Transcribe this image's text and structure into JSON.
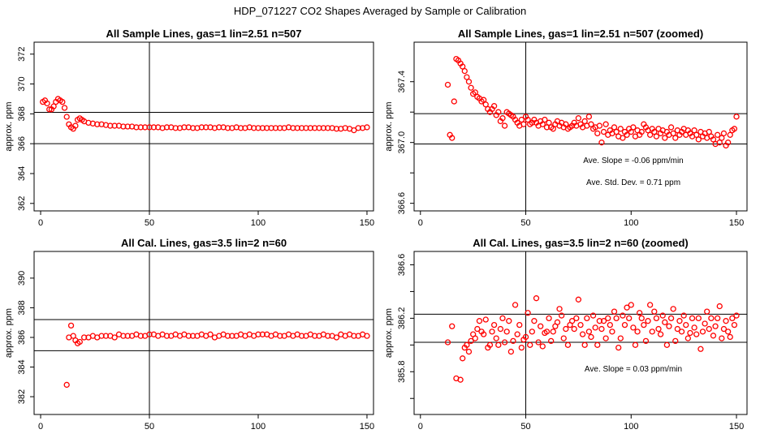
{
  "figure": {
    "title": "HDP_071227  CO2 Shapes Averaged by Sample or Calibration"
  },
  "chart_data": [
    {
      "type": "scatter",
      "title": "All Sample Lines, gas=1 lin=2.51 n=507",
      "xlabel": "",
      "ylabel": "approx. ppm",
      "xlim": [
        -3,
        153
      ],
      "ylim": [
        361.5,
        372.8
      ],
      "xticks": [
        0,
        50,
        100,
        150
      ],
      "yticks": [
        362,
        364,
        366,
        368,
        370,
        372
      ],
      "hlines": [
        366.0,
        368.1
      ],
      "vlines": [
        50
      ],
      "annotations": [],
      "series": [
        {
          "color": "#ff0000",
          "marker": "open-circle",
          "x": [
            1,
            2,
            3,
            4,
            5,
            6,
            7,
            8,
            9,
            10,
            11,
            12,
            13,
            14,
            15,
            16,
            17,
            18,
            19,
            20,
            22,
            24,
            26,
            28,
            30,
            32,
            34,
            36,
            38,
            40,
            42,
            44,
            46,
            48,
            50,
            52,
            54,
            56,
            58,
            60,
            62,
            64,
            66,
            68,
            70,
            72,
            74,
            76,
            78,
            80,
            82,
            84,
            86,
            88,
            90,
            92,
            94,
            96,
            98,
            100,
            102,
            104,
            106,
            108,
            110,
            112,
            114,
            116,
            118,
            120,
            122,
            124,
            126,
            128,
            130,
            132,
            134,
            136,
            138,
            140,
            142,
            144,
            146,
            148,
            150
          ],
          "y": [
            368.8,
            368.9,
            368.7,
            368.3,
            368.3,
            368.5,
            368.8,
            369.0,
            368.9,
            368.8,
            368.4,
            367.8,
            367.3,
            367.1,
            367.0,
            367.2,
            367.6,
            367.7,
            367.6,
            367.5,
            367.4,
            367.35,
            367.3,
            367.3,
            367.25,
            367.2,
            367.2,
            367.2,
            367.15,
            367.15,
            367.15,
            367.1,
            367.1,
            367.1,
            367.1,
            367.1,
            367.1,
            367.05,
            367.1,
            367.1,
            367.05,
            367.05,
            367.1,
            367.1,
            367.05,
            367.05,
            367.1,
            367.1,
            367.1,
            367.05,
            367.1,
            367.1,
            367.05,
            367.05,
            367.1,
            367.05,
            367.05,
            367.1,
            367.05,
            367.05,
            367.05,
            367.05,
            367.05,
            367.05,
            367.05,
            367.05,
            367.1,
            367.05,
            367.05,
            367.05,
            367.05,
            367.05,
            367.05,
            367.05,
            367.05,
            367.05,
            367.05,
            367.0,
            367.0,
            367.05,
            367.0,
            366.9,
            367.05,
            367.05,
            367.1
          ]
        }
      ]
    },
    {
      "type": "scatter",
      "title": "All Sample Lines, gas=1 lin=2.51 n=507 (zoomed)",
      "xlabel": "",
      "ylabel": "approx. ppm",
      "xlim": [
        -3,
        155
      ],
      "ylim": [
        366.55,
        367.66
      ],
      "xticks": [
        0,
        50,
        100,
        150
      ],
      "yticks": [
        366.6,
        366.8,
        367.0,
        367.2,
        367.4
      ],
      "ytick_labels": [
        "366.6",
        "",
        "367.0",
        "",
        "367.4"
      ],
      "hlines": [
        366.99,
        367.19
      ],
      "vlines": [
        50
      ],
      "annotations": [
        "Ave. Slope =  -0.06  ppm/min",
        "Ave. Std. Dev. =  0.71  ppm"
      ],
      "series": [
        {
          "color": "#ff0000",
          "marker": "open-circle",
          "x": [
            13,
            14,
            15,
            16,
            17,
            18,
            19,
            20,
            21,
            22,
            23,
            24,
            25,
            26,
            27,
            28,
            29,
            30,
            31,
            32,
            33,
            34,
            35,
            36,
            37,
            38,
            39,
            40,
            41,
            42,
            43,
            44,
            45,
            46,
            47,
            48,
            49,
            50,
            51,
            52,
            53,
            54,
            55,
            56,
            57,
            58,
            59,
            60,
            61,
            62,
            63,
            64,
            65,
            66,
            67,
            68,
            69,
            70,
            71,
            72,
            73,
            74,
            75,
            76,
            77,
            78,
            79,
            80,
            81,
            82,
            83,
            84,
            85,
            86,
            87,
            88,
            89,
            90,
            91,
            92,
            93,
            94,
            95,
            96,
            97,
            98,
            99,
            100,
            101,
            102,
            103,
            104,
            105,
            106,
            107,
            108,
            109,
            110,
            111,
            112,
            113,
            114,
            115,
            116,
            117,
            118,
            119,
            120,
            121,
            122,
            123,
            124,
            125,
            126,
            127,
            128,
            129,
            130,
            131,
            132,
            133,
            134,
            135,
            136,
            137,
            138,
            139,
            140,
            141,
            142,
            143,
            144,
            145,
            146,
            147,
            148,
            149,
            150
          ],
          "y": [
            367.38,
            367.05,
            367.03,
            367.27,
            367.55,
            367.54,
            367.52,
            367.5,
            367.47,
            367.43,
            367.4,
            367.36,
            367.32,
            367.33,
            367.3,
            367.29,
            367.27,
            367.28,
            367.25,
            367.22,
            367.2,
            367.22,
            367.24,
            367.18,
            367.2,
            367.14,
            367.16,
            367.11,
            367.2,
            367.19,
            367.18,
            367.17,
            367.15,
            367.13,
            367.11,
            367.15,
            367.12,
            367.17,
            367.15,
            367.12,
            367.13,
            367.15,
            367.13,
            367.11,
            367.14,
            367.12,
            367.15,
            367.1,
            367.13,
            367.1,
            367.09,
            367.12,
            367.14,
            367.11,
            367.13,
            367.1,
            367.12,
            367.09,
            367.1,
            367.11,
            367.13,
            367.11,
            367.16,
            367.12,
            367.1,
            367.14,
            367.11,
            367.17,
            367.12,
            367.09,
            367.1,
            367.06,
            367.11,
            367.0,
            367.07,
            367.12,
            367.05,
            367.08,
            367.06,
            367.1,
            367.07,
            367.04,
            367.09,
            367.03,
            367.07,
            367.05,
            367.09,
            367.07,
            367.1,
            367.04,
            367.08,
            367.05,
            367.07,
            367.12,
            367.1,
            367.08,
            367.05,
            367.09,
            367.07,
            367.04,
            367.09,
            367.06,
            367.08,
            367.03,
            367.07,
            367.05,
            367.1,
            367.06,
            367.03,
            367.08,
            367.05,
            367.07,
            367.09,
            367.05,
            367.08,
            367.06,
            367.04,
            367.08,
            367.05,
            367.02,
            367.07,
            367.04,
            367.06,
            367.03,
            367.07,
            367.04,
            367.02,
            366.99,
            367.05,
            367.0,
            367.03,
            367.06,
            366.98,
            367.0,
            367.05,
            367.08,
            367.09,
            367.17
          ]
        }
      ]
    },
    {
      "type": "scatter",
      "title": "All Cal. Lines, gas=3.5 lin=2 n=60",
      "xlabel": "",
      "ylabel": "approx. ppm",
      "xlim": [
        -3,
        153
      ],
      "ylim": [
        380.8,
        391.8
      ],
      "xticks": [
        0,
        50,
        100,
        150
      ],
      "yticks": [
        382,
        384,
        386,
        388,
        390
      ],
      "hlines": [
        385.1,
        387.2
      ],
      "vlines": [
        50
      ],
      "annotations": [],
      "series": [
        {
          "color": "#ff0000",
          "marker": "open-circle",
          "x": [
            12,
            13,
            14,
            15,
            16,
            17,
            18,
            20,
            22,
            24,
            26,
            28,
            30,
            32,
            34,
            36,
            38,
            40,
            42,
            44,
            46,
            48,
            50,
            52,
            54,
            56,
            58,
            60,
            62,
            64,
            66,
            68,
            70,
            72,
            74,
            76,
            78,
            80,
            82,
            84,
            86,
            88,
            90,
            92,
            94,
            96,
            98,
            100,
            102,
            104,
            106,
            108,
            110,
            112,
            114,
            116,
            118,
            120,
            122,
            124,
            126,
            128,
            130,
            132,
            134,
            136,
            138,
            140,
            142,
            144,
            146,
            148,
            150
          ],
          "y": [
            382.8,
            386.0,
            386.8,
            386.1,
            385.8,
            385.6,
            385.7,
            386.0,
            386.0,
            386.1,
            386.0,
            386.1,
            386.1,
            386.1,
            386.0,
            386.2,
            386.1,
            386.1,
            386.1,
            386.2,
            386.1,
            386.1,
            386.2,
            386.2,
            386.1,
            386.2,
            386.1,
            386.1,
            386.2,
            386.1,
            386.2,
            386.1,
            386.1,
            386.1,
            386.2,
            386.1,
            386.2,
            386.0,
            386.1,
            386.2,
            386.1,
            386.1,
            386.1,
            386.2,
            386.1,
            386.2,
            386.1,
            386.2,
            386.2,
            386.2,
            386.1,
            386.2,
            386.1,
            386.1,
            386.2,
            386.1,
            386.2,
            386.1,
            386.1,
            386.2,
            386.1,
            386.1,
            386.2,
            386.1,
            386.1,
            386.0,
            386.2,
            386.1,
            386.2,
            386.1,
            386.1,
            386.2,
            386.1
          ]
        }
      ]
    },
    {
      "type": "scatter",
      "title": "All Cal. Lines, gas=3.5 lin=2 n=60 (zoomed)",
      "xlabel": "",
      "ylabel": "approx. ppm",
      "xlim": [
        -3,
        155
      ],
      "ylim": [
        385.48,
        386.7
      ],
      "xticks": [
        0,
        50,
        100,
        150
      ],
      "yticks": [
        385.6,
        385.8,
        386.0,
        386.2,
        386.4,
        386.6
      ],
      "ytick_labels": [
        "",
        "385.8",
        "",
        "386.2",
        "",
        "386.6"
      ],
      "hlines": [
        386.02,
        386.23
      ],
      "vlines": [
        50
      ],
      "annotations": [
        "Ave. Slope =  0.03  ppm/min"
      ],
      "series": [
        {
          "color": "#ff0000",
          "marker": "open-circle",
          "x": [
            13,
            15,
            17,
            19,
            20,
            21,
            22,
            23,
            24,
            25,
            26,
            27,
            28,
            29,
            30,
            31,
            32,
            33,
            34,
            35,
            36,
            37,
            38,
            39,
            40,
            41,
            42,
            43,
            44,
            45,
            46,
            47,
            48,
            49,
            50,
            51,
            52,
            53,
            54,
            55,
            56,
            57,
            58,
            59,
            60,
            61,
            62,
            63,
            64,
            65,
            66,
            67,
            68,
            69,
            70,
            71,
            72,
            73,
            74,
            75,
            76,
            77,
            78,
            79,
            80,
            81,
            82,
            83,
            84,
            85,
            86,
            87,
            88,
            89,
            90,
            91,
            92,
            93,
            94,
            95,
            96,
            97,
            98,
            99,
            100,
            101,
            102,
            103,
            104,
            105,
            106,
            107,
            108,
            109,
            110,
            111,
            112,
            113,
            114,
            115,
            116,
            117,
            118,
            119,
            120,
            121,
            122,
            123,
            124,
            125,
            126,
            127,
            128,
            129,
            130,
            131,
            132,
            133,
            134,
            135,
            136,
            137,
            138,
            139,
            140,
            141,
            142,
            143,
            144,
            145,
            146,
            147,
            148,
            149,
            150
          ],
          "y": [
            386.02,
            386.14,
            385.75,
            385.74,
            385.9,
            385.98,
            386.0,
            385.95,
            386.03,
            386.08,
            386.05,
            386.12,
            386.18,
            386.1,
            386.08,
            386.19,
            385.98,
            386.0,
            386.1,
            386.15,
            386.05,
            386.0,
            386.12,
            386.2,
            386.02,
            386.1,
            386.18,
            385.95,
            386.03,
            386.3,
            386.08,
            386.15,
            385.98,
            386.04,
            386.06,
            386.24,
            386.0,
            386.1,
            386.18,
            386.35,
            386.02,
            386.14,
            385.99,
            386.09,
            386.1,
            386.2,
            386.03,
            386.1,
            386.14,
            386.17,
            386.27,
            386.22,
            386.05,
            386.12,
            386.0,
            386.15,
            386.18,
            386.12,
            386.2,
            386.34,
            386.15,
            386.08,
            386.0,
            386.2,
            386.1,
            386.06,
            386.22,
            386.13,
            386.0,
            386.18,
            386.12,
            386.18,
            386.05,
            386.2,
            386.15,
            386.1,
            386.25,
            386.2,
            385.98,
            386.05,
            386.22,
            386.15,
            386.28,
            386.2,
            386.3,
            386.13,
            386.0,
            386.1,
            386.24,
            386.2,
            386.15,
            386.03,
            386.18,
            386.3,
            386.1,
            386.25,
            386.2,
            386.12,
            386.08,
            386.22,
            386.17,
            386.0,
            386.14,
            386.2,
            386.27,
            386.03,
            386.12,
            386.18,
            386.1,
            386.22,
            386.15,
            386.05,
            386.09,
            386.2,
            386.13,
            386.08,
            386.2,
            385.97,
            386.1,
            386.16,
            386.25,
            386.12,
            386.2,
            386.07,
            386.14,
            386.2,
            386.29,
            386.05,
            386.12,
            386.18,
            386.1,
            386.06,
            386.2,
            386.15,
            386.22
          ]
        }
      ]
    }
  ]
}
